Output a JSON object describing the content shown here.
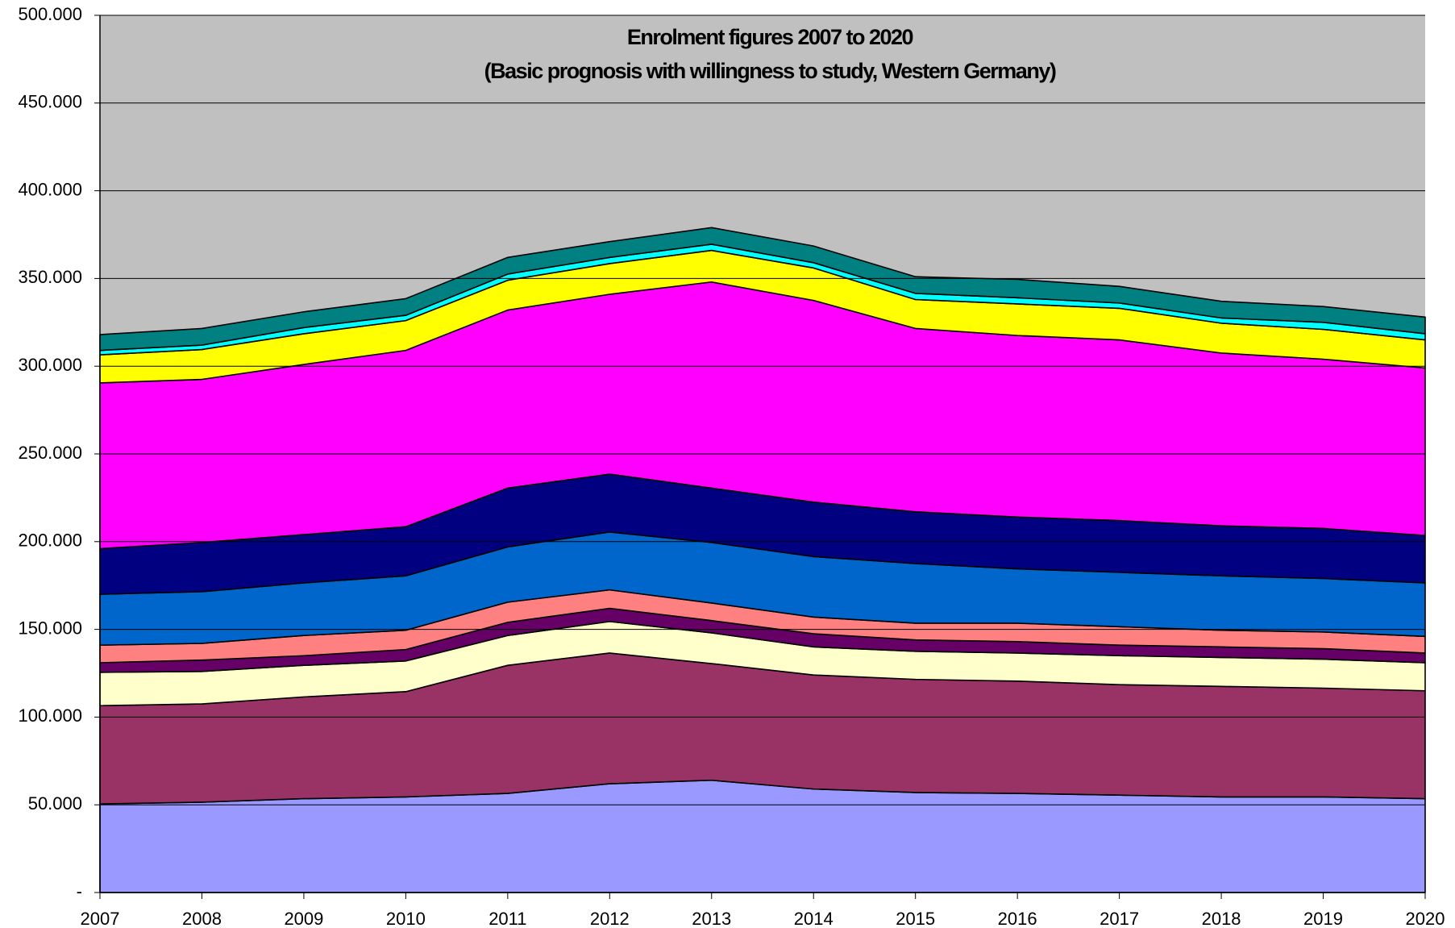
{
  "chart_data": {
    "type": "stacked-area",
    "title": "Enrolment figures 2007 to 2020",
    "subtitle": "(Basic prognosis with willingness to study, Western Germany)",
    "categories": [
      "2007",
      "2008",
      "2009",
      "2010",
      "2011",
      "2012",
      "2013",
      "2014",
      "2015",
      "2016",
      "2017",
      "2018",
      "2019",
      "2020"
    ],
    "series": [
      {
        "color": "#9999ff",
        "values": [
          50500,
          51500,
          53500,
          54500,
          56500,
          62000,
          64000,
          59000,
          57000,
          56500,
          55500,
          54500,
          54500,
          53500
        ]
      },
      {
        "color": "#993366",
        "values": [
          56000,
          56000,
          58000,
          60000,
          73000,
          74500,
          66500,
          65000,
          64500,
          64000,
          63000,
          63000,
          62000,
          61500
        ]
      },
      {
        "color": "#ffffcc",
        "values": [
          19000,
          18500,
          18000,
          17500,
          17000,
          18000,
          17500,
          16000,
          16000,
          16000,
          16500,
          16500,
          16500,
          16000
        ]
      },
      {
        "color": "#660066",
        "values": [
          5500,
          6500,
          5500,
          6500,
          7500,
          7500,
          7000,
          7500,
          6500,
          6500,
          6000,
          6000,
          6000,
          5500
        ]
      },
      {
        "color": "#ff8080",
        "values": [
          10000,
          9500,
          11500,
          11000,
          11500,
          10500,
          10000,
          9500,
          9500,
          10500,
          10500,
          9500,
          9500,
          9500
        ]
      },
      {
        "color": "#0066cc",
        "values": [
          29000,
          29500,
          30000,
          31000,
          31500,
          33000,
          34500,
          34500,
          34000,
          31000,
          31000,
          31000,
          30500,
          30500
        ]
      },
      {
        "color": "#000080",
        "values": [
          26000,
          28000,
          27500,
          28000,
          33500,
          33000,
          31000,
          31000,
          29500,
          29500,
          29500,
          28500,
          28500,
          27000
        ]
      },
      {
        "color": "#ff00ff",
        "values": [
          94500,
          93000,
          97000,
          100500,
          101500,
          102500,
          117500,
          115000,
          104500,
          103500,
          103000,
          98500,
          96500,
          95500
        ]
      },
      {
        "color": "#ffff00",
        "values": [
          16000,
          17000,
          17500,
          17000,
          17000,
          17500,
          18000,
          18500,
          16500,
          18000,
          18000,
          17000,
          17000,
          16000
        ]
      },
      {
        "color": "#00ffff",
        "values": [
          2500,
          2500,
          3500,
          3000,
          3500,
          3500,
          3500,
          3000,
          3500,
          3500,
          3000,
          3000,
          4000,
          3500
        ]
      },
      {
        "color": "#008080",
        "values": [
          9000,
          9500,
          9000,
          9500,
          9500,
          9000,
          9500,
          9500,
          9500,
          10500,
          9500,
          9500,
          9000,
          9500
        ]
      }
    ],
    "ylim": [
      0,
      500000
    ],
    "yticks": [
      {
        "value": 0,
        "label": "-"
      },
      {
        "value": 50000,
        "label": "50.000"
      },
      {
        "value": 100000,
        "label": "100.000"
      },
      {
        "value": 150000,
        "label": "150.000"
      },
      {
        "value": 200000,
        "label": "200.000"
      },
      {
        "value": 250000,
        "label": "250.000"
      },
      {
        "value": 300000,
        "label": "300.000"
      },
      {
        "value": 350000,
        "label": "350.000"
      },
      {
        "value": 400000,
        "label": "400.000"
      },
      {
        "value": 450000,
        "label": "450.000"
      },
      {
        "value": 500000,
        "label": "500.000"
      }
    ],
    "grid": true,
    "background": "#c0c0c0"
  }
}
